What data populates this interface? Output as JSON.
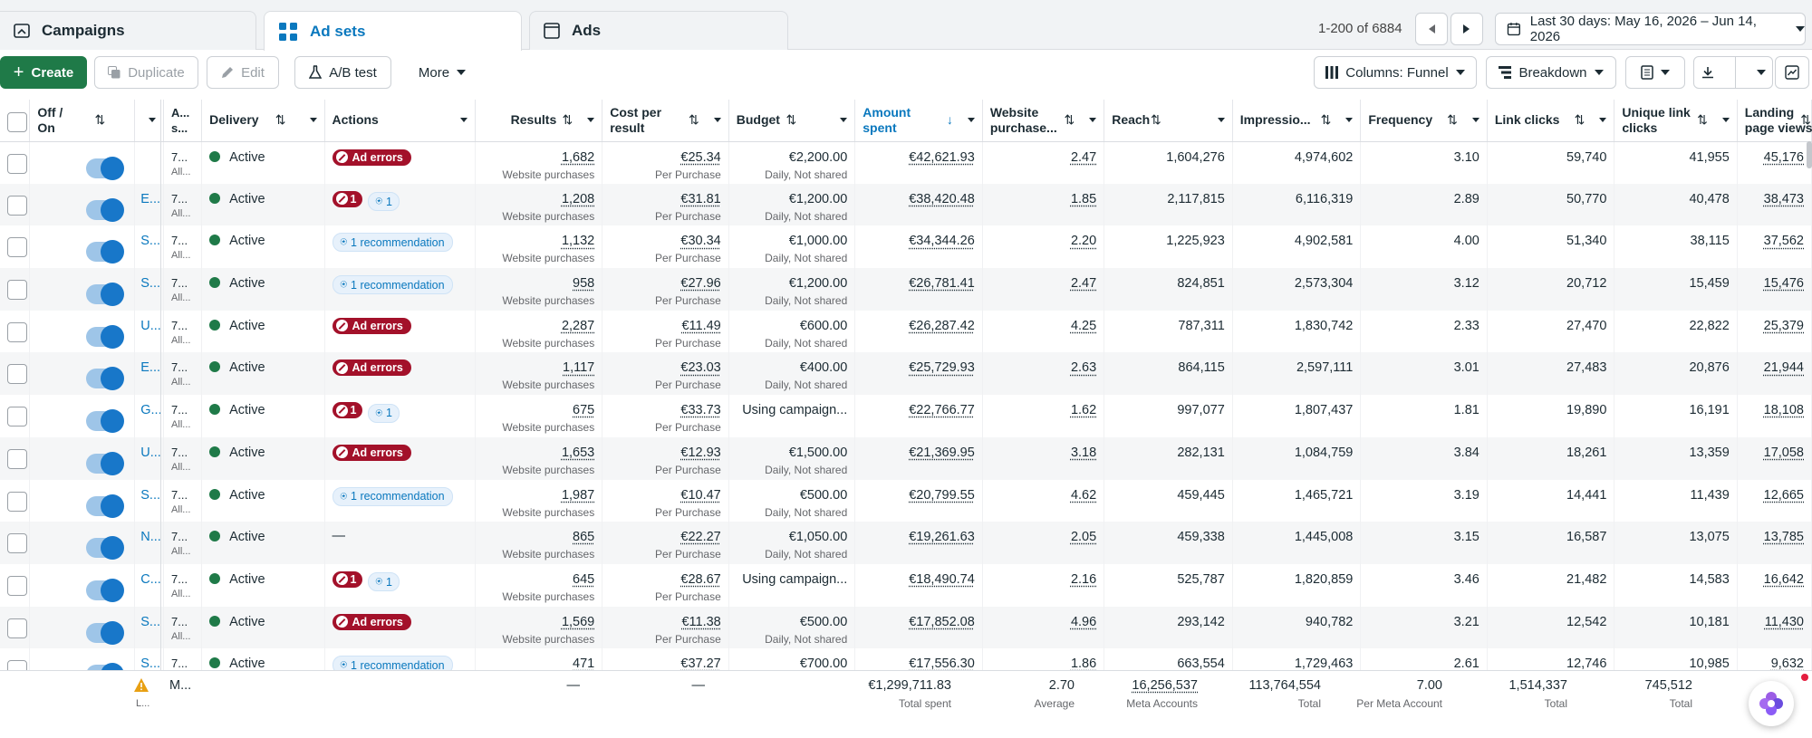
{
  "tabs": [
    {
      "label": "Campaigns",
      "icon": "campaign-folder-icon",
      "active": false
    },
    {
      "label": "Ad sets",
      "icon": "grid-icon",
      "active": true
    },
    {
      "label": "Ads",
      "icon": "ad-window-icon",
      "active": false
    }
  ],
  "pager": {
    "text": "1-200 of 6884"
  },
  "date_range": {
    "label": "Last 30 days: May 16, 2026 – Jun 14, 2026"
  },
  "toolbar": {
    "create": "Create",
    "duplicate": "Duplicate",
    "edit": "Edit",
    "ab_test": "A/B test",
    "more": "More",
    "columns": "Columns: Funnel",
    "breakdown": "Breakdown"
  },
  "columns": {
    "offon": "Off / On",
    "adset": "A... s...",
    "delivery": "Delivery",
    "actions": "Actions",
    "results": "Results",
    "cpr": "Cost per result",
    "budget": "Budget",
    "amount": "Amount spent",
    "wp": "Website purchase...",
    "reach": "Reach",
    "impressions": "Impressio...",
    "frequency": "Frequency",
    "link_clicks": "Link clicks",
    "unique_link": "Unique link clicks",
    "landing": "Landing page views"
  },
  "rows": [
    {
      "name": "",
      "id": "7...",
      "sub": "All...",
      "delivery": "Active",
      "badge": "err",
      "results": "1,682",
      "results_sub": "Website purchases",
      "cpr": "€25.34",
      "cpr_sub": "Per Purchase",
      "budget": "€2,200.00",
      "budget_sub": "Daily, Not shared",
      "amount": "€42,621.93",
      "wp": "2.47",
      "reach": "1,604,276",
      "impressions": "4,974,602",
      "frequency": "3.10",
      "link_clicks": "59,740",
      "unique_link": "41,955",
      "landing": "45,176"
    },
    {
      "name": "E...",
      "id": "7...",
      "sub": "All...",
      "delivery": "Active",
      "badge": "mixed",
      "results": "1,208",
      "results_sub": "Website purchases",
      "cpr": "€31.81",
      "cpr_sub": "Per Purchase",
      "budget": "€1,200.00",
      "budget_sub": "Daily, Not shared",
      "amount": "€38,420.48",
      "wp": "1.85",
      "reach": "2,117,815",
      "impressions": "6,116,319",
      "frequency": "2.89",
      "link_clicks": "50,770",
      "unique_link": "40,478",
      "landing": "38,473"
    },
    {
      "name": "S...",
      "id": "7...",
      "sub": "All...",
      "delivery": "Active",
      "badge": "rec",
      "results": "1,132",
      "results_sub": "Website purchases",
      "cpr": "€30.34",
      "cpr_sub": "Per Purchase",
      "budget": "€1,000.00",
      "budget_sub": "Daily, Not shared",
      "amount": "€34,344.26",
      "wp": "2.20",
      "reach": "1,225,923",
      "impressions": "4,902,581",
      "frequency": "4.00",
      "link_clicks": "51,340",
      "unique_link": "38,115",
      "landing": "37,562"
    },
    {
      "name": "S...",
      "id": "7...",
      "sub": "All...",
      "delivery": "Active",
      "badge": "rec",
      "results": "958",
      "results_sub": "Website purchases",
      "cpr": "€27.96",
      "cpr_sub": "Per Purchase",
      "budget": "€1,200.00",
      "budget_sub": "Daily, Not shared",
      "amount": "€26,781.41",
      "wp": "2.47",
      "reach": "824,851",
      "impressions": "2,573,304",
      "frequency": "3.12",
      "link_clicks": "20,712",
      "unique_link": "15,459",
      "landing": "15,476"
    },
    {
      "name": "U...",
      "id": "7...",
      "sub": "All...",
      "delivery": "Active",
      "badge": "err",
      "results": "2,287",
      "results_sub": "Website purchases",
      "cpr": "€11.49",
      "cpr_sub": "Per Purchase",
      "budget": "€600.00",
      "budget_sub": "Daily, Not shared",
      "amount": "€26,287.42",
      "wp": "4.25",
      "reach": "787,311",
      "impressions": "1,830,742",
      "frequency": "2.33",
      "link_clicks": "27,470",
      "unique_link": "22,822",
      "landing": "25,379"
    },
    {
      "name": "E...",
      "id": "7...",
      "sub": "All...",
      "delivery": "Active",
      "badge": "err",
      "results": "1,117",
      "results_sub": "Website purchases",
      "cpr": "€23.03",
      "cpr_sub": "Per Purchase",
      "budget": "€400.00",
      "budget_sub": "Daily, Not shared",
      "amount": "€25,729.93",
      "wp": "2.63",
      "reach": "864,115",
      "impressions": "2,597,111",
      "frequency": "3.01",
      "link_clicks": "27,483",
      "unique_link": "20,876",
      "landing": "21,944"
    },
    {
      "name": "G...",
      "id": "7...",
      "sub": "All...",
      "delivery": "Active",
      "badge": "mixed",
      "results": "675",
      "results_sub": "Website purchases",
      "cpr": "€33.73",
      "cpr_sub": "Per Purchase",
      "budget": "Using campaign...",
      "budget_sub": "",
      "amount": "€22,766.77",
      "wp": "1.62",
      "reach": "997,077",
      "impressions": "1,807,437",
      "frequency": "1.81",
      "link_clicks": "19,890",
      "unique_link": "16,191",
      "landing": "18,108"
    },
    {
      "name": "U...",
      "id": "7...",
      "sub": "All...",
      "delivery": "Active",
      "badge": "err",
      "results": "1,653",
      "results_sub": "Website purchases",
      "cpr": "€12.93",
      "cpr_sub": "Per Purchase",
      "budget": "€1,500.00",
      "budget_sub": "Daily, Not shared",
      "amount": "€21,369.95",
      "wp": "3.18",
      "reach": "282,131",
      "impressions": "1,084,759",
      "frequency": "3.84",
      "link_clicks": "18,261",
      "unique_link": "13,359",
      "landing": "17,058"
    },
    {
      "name": "S...",
      "id": "7...",
      "sub": "All...",
      "delivery": "Active",
      "badge": "rec",
      "results": "1,987",
      "results_sub": "Website purchases",
      "cpr": "€10.47",
      "cpr_sub": "Per Purchase",
      "budget": "€500.00",
      "budget_sub": "Daily, Not shared",
      "amount": "€20,799.55",
      "wp": "4.62",
      "reach": "459,445",
      "impressions": "1,465,721",
      "frequency": "3.19",
      "link_clicks": "14,441",
      "unique_link": "11,439",
      "landing": "12,665"
    },
    {
      "name": "N...",
      "id": "7...",
      "sub": "All...",
      "delivery": "Active",
      "badge": "none",
      "results": "865",
      "results_sub": "Website purchases",
      "cpr": "€22.27",
      "cpr_sub": "Per Purchase",
      "budget": "€1,050.00",
      "budget_sub": "Daily, Not shared",
      "amount": "€19,261.63",
      "wp": "2.05",
      "reach": "459,338",
      "impressions": "1,445,008",
      "frequency": "3.15",
      "link_clicks": "16,587",
      "unique_link": "13,075",
      "landing": "13,785"
    },
    {
      "name": "C...",
      "id": "7...",
      "sub": "All...",
      "delivery": "Active",
      "badge": "mixed",
      "results": "645",
      "results_sub": "Website purchases",
      "cpr": "€28.67",
      "cpr_sub": "Per Purchase",
      "budget": "Using campaign...",
      "budget_sub": "",
      "amount": "€18,490.74",
      "wp": "2.16",
      "reach": "525,787",
      "impressions": "1,820,859",
      "frequency": "3.46",
      "link_clicks": "21,482",
      "unique_link": "14,583",
      "landing": "16,642"
    },
    {
      "name": "S...",
      "id": "7...",
      "sub": "All...",
      "delivery": "Active",
      "badge": "err",
      "results": "1,569",
      "results_sub": "Website purchases",
      "cpr": "€11.38",
      "cpr_sub": "Per Purchase",
      "budget": "€500.00",
      "budget_sub": "Daily, Not shared",
      "amount": "€17,852.08",
      "wp": "4.96",
      "reach": "293,142",
      "impressions": "940,782",
      "frequency": "3.21",
      "link_clicks": "12,542",
      "unique_link": "10,181",
      "landing": "11,430"
    },
    {
      "name": "S...",
      "id": "7...",
      "sub": "All...",
      "delivery": "Active",
      "badge": "rec",
      "results": "471",
      "results_sub": "",
      "cpr": "€37.27",
      "cpr_sub": "",
      "budget": "€700.00",
      "budget_sub": "",
      "amount": "€17,556.30",
      "wp": "1.86",
      "reach": "663,554",
      "impressions": "1,729,463",
      "frequency": "2.61",
      "link_clicks": "12,746",
      "unique_link": "10,985",
      "landing": "9,632"
    }
  ],
  "badges": {
    "err": "Ad errors",
    "rec": "1 recommendation",
    "count": "1",
    "none": "—"
  },
  "footer": {
    "label": "M...",
    "label_sub": "L...",
    "results": "—",
    "cpr": "—",
    "amount": "€1,299,711.83",
    "amount_sub": "Total spent",
    "wp": "2.70",
    "wp_sub": "Average",
    "reach": "16,256,537",
    "reach_sub": "Meta Accounts",
    "impressions": "113,764,554",
    "impressions_sub": "Total",
    "frequency": "7.00",
    "frequency_sub": "Per Meta Account",
    "link_clicks": "1,514,337",
    "link_clicks_sub": "Total",
    "unique_link": "745,512",
    "unique_link_sub": "Total"
  },
  "colors": {
    "accent": "#0a78be",
    "create": "#1f7a48",
    "error": "#a3112a",
    "active": "#1f7a48"
  }
}
